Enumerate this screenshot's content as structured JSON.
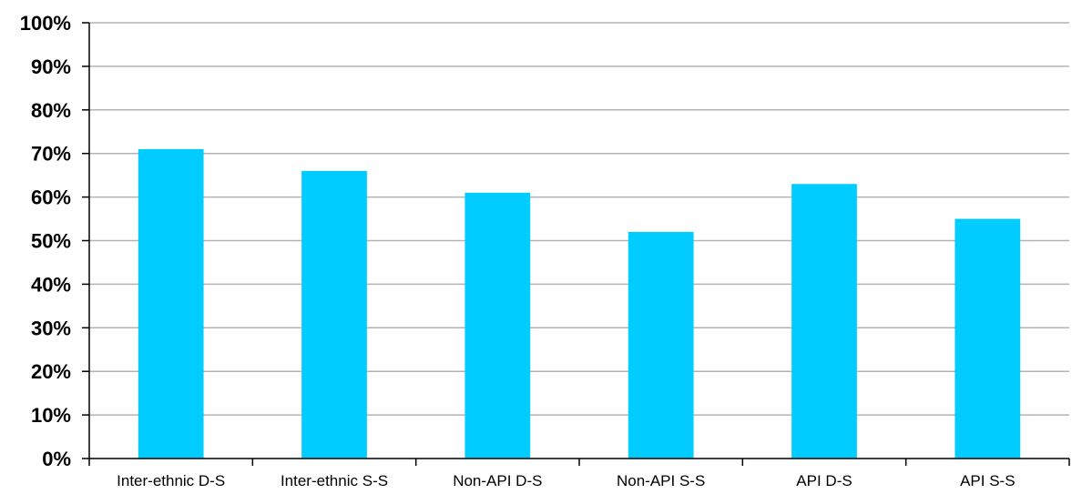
{
  "chart_data": {
    "type": "bar",
    "categories": [
      "Inter-ethnic D-S",
      "Inter-ethnic S-S",
      "Non-API D-S",
      "Non-API S-S",
      "API D-S",
      "API S-S"
    ],
    "values": [
      71,
      66,
      61,
      52,
      63,
      55
    ],
    "title": "",
    "xlabel": "",
    "ylabel": "",
    "ylim": [
      0,
      100
    ],
    "yticks": [
      0,
      10,
      20,
      30,
      40,
      50,
      60,
      70,
      80,
      90,
      100
    ],
    "ytick_labels": [
      "0%",
      "10%",
      "20%",
      "30%",
      "40%",
      "50%",
      "60%",
      "70%",
      "80%",
      "90%",
      "100%"
    ],
    "grid": true,
    "bar_color": "#00ccff"
  }
}
